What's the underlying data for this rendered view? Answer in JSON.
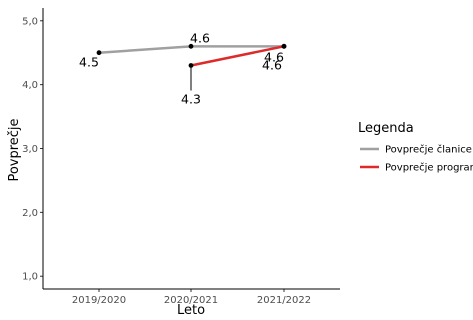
{
  "chart_data": {
    "type": "line",
    "xlabel": "Leto",
    "ylabel": "Povprečje",
    "categories": [
      "2019/2020",
      "2020/2021",
      "2021/2022"
    ],
    "ylim": [
      0.8,
      5.2
    ],
    "yticks": [
      1,
      2,
      3,
      4,
      5
    ],
    "ytick_labels": [
      "1,0",
      "2,0",
      "3,0",
      "4,0",
      "5,0"
    ],
    "grid": false,
    "legend": {
      "title": "Legenda",
      "placement": "right"
    },
    "series": [
      {
        "name": "Povprečje članice",
        "color": "#a0a0a0",
        "values": [
          4.5,
          4.6,
          4.6
        ],
        "labels": [
          "4.5",
          "4.6",
          "4.6"
        ]
      },
      {
        "name": "Povprečje programa",
        "color": "#dd2a2a",
        "values": [
          null,
          4.3,
          4.6
        ],
        "labels": [
          null,
          "4.3",
          "4.6"
        ]
      }
    ]
  }
}
